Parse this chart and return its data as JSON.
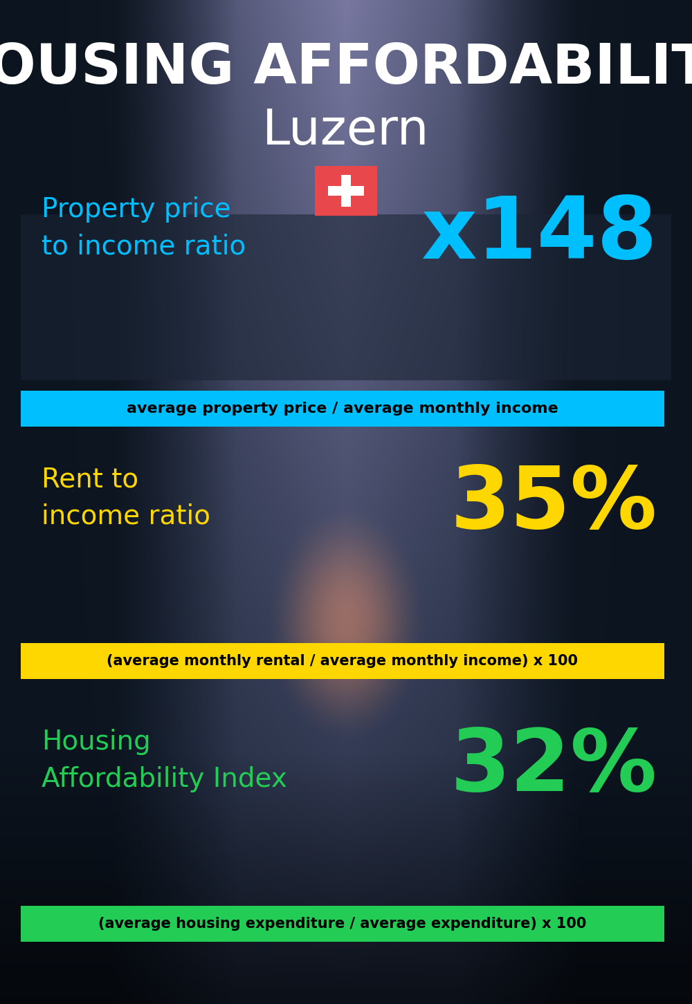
{
  "title_line1": "HOUSING AFFORDABILITY",
  "title_line2": "Luzern",
  "bg_color": "#080e18",
  "title1_color": "#ffffff",
  "title2_color": "#ffffff",
  "section1_label": "Property price\nto income ratio",
  "section1_value": "x148",
  "section1_label_color": "#00bfff",
  "section1_value_color": "#00bfff",
  "section1_formula": "average property price / average monthly income",
  "section1_formula_bg": "#00bfff",
  "section1_formula_color": "#000000",
  "section2_label": "Rent to\nincome ratio",
  "section2_value": "35%",
  "section2_label_color": "#ffd700",
  "section2_value_color": "#ffd700",
  "section2_formula": "(average monthly rental / average monthly income) x 100",
  "section2_formula_bg": "#ffd700",
  "section2_formula_color": "#000000",
  "section3_label": "Housing\nAffordability Index",
  "section3_value": "32%",
  "section3_label_color": "#22cc55",
  "section3_value_color": "#22cc55",
  "section3_formula": "(average housing expenditure / average expenditure) x 100",
  "section3_formula_bg": "#22cc55",
  "section3_formula_color": "#000000",
  "flag_red": "#e8474b",
  "flag_white": "#ffffff",
  "panel_color": "#1a2535",
  "panel_alpha": 0.6
}
